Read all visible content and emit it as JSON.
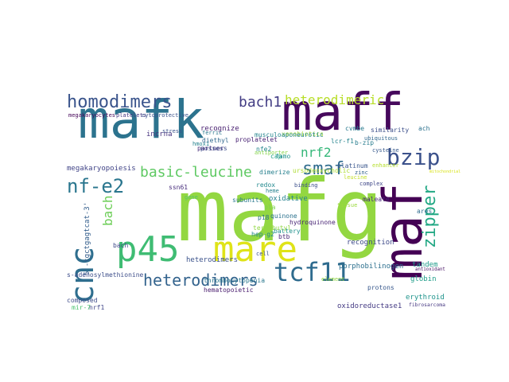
{
  "cloud": {
    "words": [
      {
        "text": "mafg",
        "color": "#93d741"
      },
      {
        "text": "mafk",
        "color": "#2c738e"
      },
      {
        "text": "maff",
        "color": "#46085c"
      },
      {
        "text": "mare",
        "color": "#dfe318"
      },
      {
        "text": "p45",
        "color": "#3fbc73"
      },
      {
        "text": "maf",
        "color": "#440154"
      },
      {
        "text": "cnc",
        "color": "#2e6e8e"
      },
      {
        "text": "tcf11",
        "color": "#2e6b8e"
      },
      {
        "text": "homodimers",
        "color": "#3a548c"
      },
      {
        "text": "heterodimers",
        "color": "#33638d"
      },
      {
        "text": "bzip",
        "color": "#3b518b"
      },
      {
        "text": "nf-e2",
        "color": "#2a768e"
      },
      {
        "text": "basic-leucine",
        "color": "#5ec962"
      },
      {
        "text": "smaf",
        "color": "#2f6c8e"
      },
      {
        "text": "bach1",
        "color": "#433d84"
      },
      {
        "text": "heterodimeric",
        "color": "#b8de29"
      },
      {
        "text": "nrf2",
        "color": "#35b779"
      },
      {
        "text": "zipper",
        "color": "#22a884"
      },
      {
        "text": "bach",
        "color": "#6ece58"
      },
      {
        "text": "porphobilinogen",
        "color": "#2d708e"
      },
      {
        "text": "megakaryopoiesis",
        "color": "#414487"
      },
      {
        "text": "heterodimers",
        "color": "#3b528b"
      },
      {
        "text": "recognize",
        "color": "#481f70"
      },
      {
        "text": "subunits",
        "color": "#2a788e"
      },
      {
        "text": "oxidative",
        "color": "#26828e"
      },
      {
        "text": "quinone",
        "color": "#2c728e"
      },
      {
        "text": "hydroquinone",
        "color": "#482475"
      },
      {
        "text": "recognition",
        "color": "#3e4a89"
      },
      {
        "text": "globin",
        "color": "#1f9e89"
      },
      {
        "text": "erythroid",
        "color": "#1f948c"
      },
      {
        "text": "antioxidant",
        "color": "#471365"
      },
      {
        "text": "fibrosarcoma",
        "color": "#453781"
      },
      {
        "text": "oxidoreductase1",
        "color": "#443a83"
      },
      {
        "text": "composed",
        "color": "#3e4c8a"
      },
      {
        "text": "battery",
        "color": "#20928c"
      },
      {
        "text": "hep-g2",
        "color": "#24878e"
      },
      {
        "text": "protons",
        "color": "#38588c"
      },
      {
        "text": "platinum",
        "color": "#39568c"
      },
      {
        "text": "dimerize",
        "color": "#27808e"
      },
      {
        "text": "partner",
        "color": "#472c7a"
      },
      {
        "text": "possess",
        "color": "#3d4d8a"
      },
      {
        "text": "lcr-f1",
        "color": "#25848e"
      },
      {
        "text": "maleate",
        "color": "#482878"
      },
      {
        "text": "tandem",
        "color": "#1e9b8a"
      },
      {
        "text": "nrf1",
        "color": "#404688"
      },
      {
        "text": "mir-7",
        "color": "#4ac16d"
      },
      {
        "text": "incrna",
        "color": "#46327e"
      },
      {
        "text": "megakaryocytes",
        "color": "#450559"
      },
      {
        "text": "platelets",
        "color": "#443983"
      },
      {
        "text": "cytoprotective",
        "color": "#3b528b"
      },
      {
        "text": "xenobiotics",
        "color": "#a0da39"
      },
      {
        "text": "diethyl",
        "color": "#31688e"
      },
      {
        "text": "proplatelet",
        "color": "#482173"
      },
      {
        "text": "ursodeoxycholic",
        "color": "#addc30"
      },
      {
        "text": "hematopoietic",
        "color": "#481b6d"
      },
      {
        "text": "thrombocytopenia",
        "color": "#2a788e"
      },
      {
        "text": "b-zip",
        "color": "#287c8e"
      },
      {
        "text": "cvmbe",
        "color": "#29798e"
      },
      {
        "text": "similarity",
        "color": "#3c4f8a"
      },
      {
        "text": "cap",
        "color": "#1fa187"
      },
      {
        "text": "redox",
        "color": "#23898e"
      },
      {
        "text": "p18",
        "color": "#2d718e"
      },
      {
        "text": "bach",
        "color": "#3e4989"
      },
      {
        "text": "ssn61",
        "color": "#472d7b"
      },
      {
        "text": "ach",
        "color": "#2c728e"
      },
      {
        "text": "famo",
        "color": "#21918c"
      },
      {
        "text": "btb",
        "color": "#482576"
      },
      {
        "text": "5'-tgctgagtcat-3'",
        "color": "#355f8d"
      },
      {
        "text": "s-adenosylmethionine",
        "color": "#3d4e8a"
      },
      {
        "text": "pla",
        "color": "#7ad151"
      },
      {
        "text": "ubiquitous",
        "color": "#31688e"
      },
      {
        "text": "tert-butyl",
        "color": "#90d743"
      },
      {
        "text": "musculoaponeurotic",
        "color": "#25858e"
      },
      {
        "text": "cysteine",
        "color": "#37598c"
      },
      {
        "text": "nfe2",
        "color": "#24878e"
      },
      {
        "text": "hmox1",
        "color": "#26828e"
      },
      {
        "text": "ferric",
        "color": "#2a768e"
      },
      {
        "text": "complex",
        "color": "#3f4788"
      },
      {
        "text": "ares",
        "color": "#2f6c8e"
      },
      {
        "text": "tissue",
        "color": "#9bd93c"
      },
      {
        "text": "enhancer",
        "color": "#b5de2b"
      },
      {
        "text": "gene",
        "color": "#56c667"
      },
      {
        "text": "stress",
        "color": "#3a538b"
      },
      {
        "text": "mitochondrial",
        "color": "#d8e219"
      },
      {
        "text": "antiporter",
        "color": "#85d54a"
      },
      {
        "text": "cell",
        "color": "#3b528b"
      },
      {
        "text": "heme",
        "color": "#26828e"
      },
      {
        "text": "leucine",
        "color": "#c2df23"
      },
      {
        "text": "binding",
        "color": "#3c4f8a"
      },
      {
        "text": "zinc",
        "color": "#33628d"
      },
      {
        "text": "element",
        "color": "#93d741"
      },
      {
        "text": "nuclear",
        "color": "#2f6c8e"
      }
    ]
  }
}
